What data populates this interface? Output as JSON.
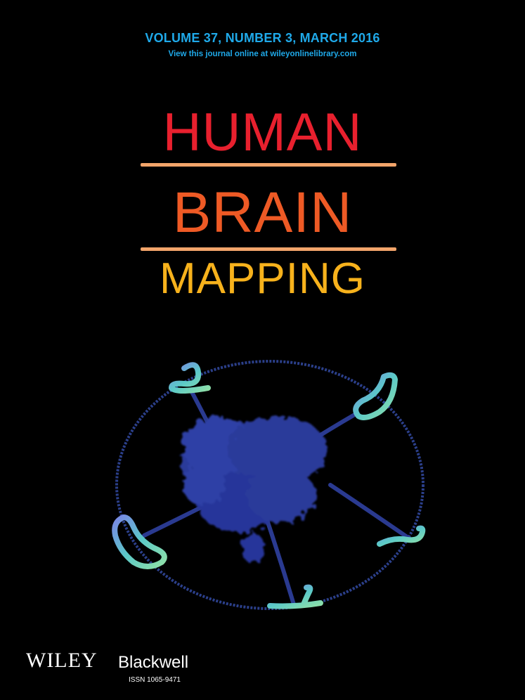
{
  "cover": {
    "volume_line": "VOLUME 37, NUMBER 3, MARCH 2016",
    "online_line": "View this journal online at wileyonlinelibrary.com",
    "title_line1": "HUMAN",
    "title_line2": "BRAIN",
    "title_line3": "MAPPING",
    "publisher": "WILEY",
    "imprint": "Blackwell",
    "issn": "ISSN 1065-9471"
  },
  "colors": {
    "background": "#000000",
    "header_text": "#1fa9e9",
    "title_human": "#e8202e",
    "title_brain": "#ee5a25",
    "title_mapping": "#f7b21c",
    "rules": "#f2a46a",
    "brain_blob": "#2a3a9a",
    "ring": "#2b3f8a",
    "tubes": [
      "#7a86e6",
      "#5bc9c8",
      "#8fe0a8"
    ]
  },
  "artwork": {
    "subject": "blue brain cloud inside ring with connected tube segments",
    "icons": [
      "brain-cloud-icon",
      "ring-icon",
      "tube-icon"
    ]
  }
}
